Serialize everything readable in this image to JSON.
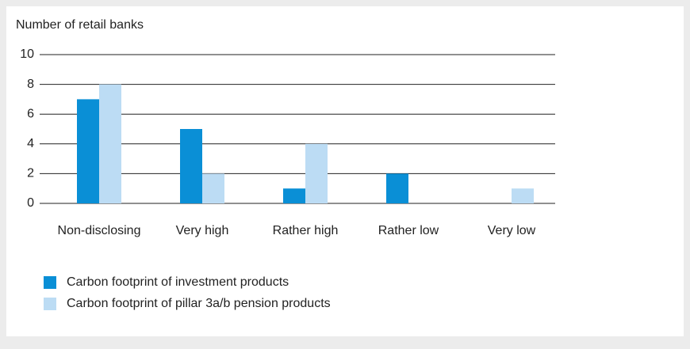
{
  "chart_data": {
    "type": "bar",
    "y_label": "Number of retail banks",
    "categories": [
      "Non-disclosing",
      "Very high",
      "Rather high",
      "Rather low",
      "Very low"
    ],
    "series": [
      {
        "name": "Carbon footprint of investment products",
        "color": "#0a8fd6",
        "values": [
          7,
          5,
          1,
          2,
          0
        ]
      },
      {
        "name": "Carbon footprint of pillar 3a/b pension products",
        "color": "#bcdcf4",
        "values": [
          8,
          2,
          4,
          0,
          1
        ]
      }
    ],
    "ylim": [
      0,
      10
    ],
    "yticks": [
      0,
      2,
      4,
      6,
      8,
      10
    ],
    "grid": true,
    "legend": "bottom-left"
  }
}
